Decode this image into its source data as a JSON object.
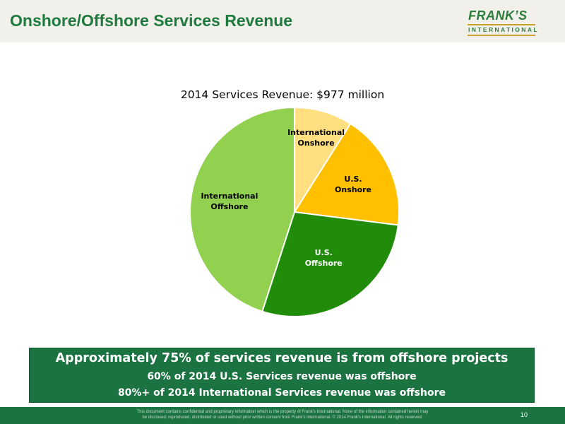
{
  "header": {
    "title": "Onshore/Offshore Services Revenue",
    "logo_line1": "FRANK’S",
    "logo_line2": "INTERNATIONAL"
  },
  "chart_data": {
    "type": "pie",
    "title": "2014 Services Revenue: $977 million",
    "categories": [
      "International Onshore",
      "U.S. Onshore",
      "U.S. Offshore",
      "International Offshore"
    ],
    "values": [
      9,
      18,
      28,
      45
    ],
    "colors": [
      "#ffdf80",
      "#ffc000",
      "#218b0a",
      "#92d050"
    ],
    "label_colors": [
      "#000000",
      "#000000",
      "#ffffff",
      "#000000"
    ],
    "labels": [
      "International\nOnshore",
      "U.S.\nOnshore",
      "U.S.\nOffshore",
      "International\nOffshore"
    ]
  },
  "callout": {
    "heading": "Approximately 75% of services revenue is from offshore projects",
    "line1": "60% of 2014 U.S. Services revenue was offshore",
    "line2": "80%+ of 2014 International Services revenue was offshore"
  },
  "footer": {
    "disclaimer_line1": "This document contains confidential and proprietary information which is the property of Frank’s International.  None of the information contained herein may",
    "disclaimer_line2": "be disclosed, reproduced, distributed or used without prior written consent from Frank’s International. © 2014 Frank’s International.   All rights reserved.",
    "page_number": "10"
  }
}
